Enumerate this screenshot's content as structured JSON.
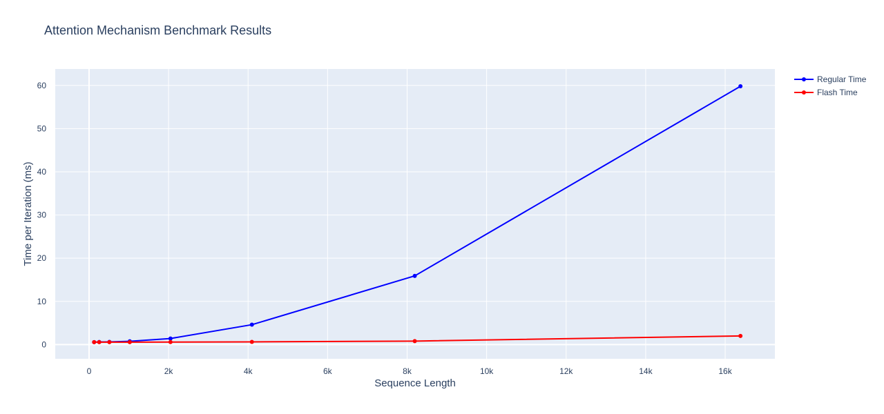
{
  "chart_data": {
    "type": "line",
    "title": "Attention Mechanism Benchmark Results",
    "xlabel": "Sequence Length",
    "ylabel": "Time per Iteration (ms)",
    "xlim": [
      -850,
      17250
    ],
    "ylim": [
      -3.3,
      63.8
    ],
    "xticks": [
      0,
      2000,
      4000,
      6000,
      8000,
      10000,
      12000,
      14000,
      16000
    ],
    "xtick_labels": [
      "0",
      "2k",
      "4k",
      "6k",
      "8k",
      "10k",
      "12k",
      "14k",
      "16k"
    ],
    "yticks": [
      0,
      10,
      20,
      30,
      40,
      50,
      60
    ],
    "ytick_labels": [
      "0",
      "10",
      "20",
      "30",
      "40",
      "50",
      "60"
    ],
    "grid": true,
    "legend_position": "top-right",
    "series": [
      {
        "name": "Regular Time",
        "color": "#0000ff",
        "x": [
          128,
          256,
          512,
          1024,
          2048,
          4096,
          8192,
          16384
        ],
        "y": [
          0.55,
          0.6,
          0.62,
          0.75,
          1.4,
          4.6,
          15.9,
          59.8
        ]
      },
      {
        "name": "Flash Time",
        "color": "#ff0000",
        "x": [
          128,
          256,
          512,
          1024,
          2048,
          4096,
          8192,
          16384
        ],
        "y": [
          0.55,
          0.55,
          0.55,
          0.56,
          0.58,
          0.62,
          0.8,
          2.0
        ]
      }
    ],
    "colors": {
      "plot_bg": "#e5ecf6",
      "grid": "#ffffff",
      "text": "#2a3f5f"
    }
  }
}
